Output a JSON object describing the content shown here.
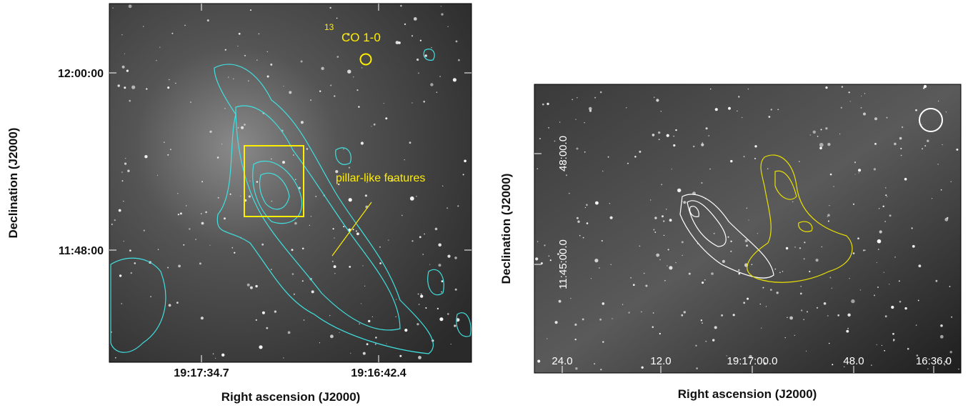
{
  "panels": [
    {
      "x_axis_label": "Right ascension (J2000)",
      "y_axis_label": "Declination (J2000)",
      "x_tick_labels": [
        "19:17:34.7",
        "19:16:42.4"
      ],
      "y_tick_labels": [
        "12:00:00",
        "11:48:00"
      ],
      "annotations": {
        "isotope": "13",
        "line": "CO 1-0",
        "feature": "pillar-like features"
      }
    },
    {
      "x_axis_label": "Right ascension (J2000)",
      "y_axis_label": "Declination (J2000)",
      "x_tick_labels": [
        "24.0",
        "12.0",
        "19:17:00.0",
        "48.0",
        "16:36.0"
      ],
      "y_tick_labels": [
        "48:00.0",
        "11:45:00.0"
      ]
    }
  ]
}
